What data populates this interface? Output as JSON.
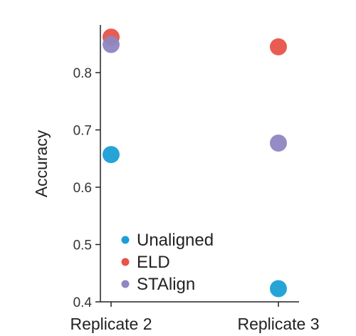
{
  "chart_data": {
    "type": "scatter",
    "title": "",
    "xlabel": "",
    "ylabel": "Accuracy",
    "categories": [
      "Replicate 2",
      "Replicate 3"
    ],
    "ylim": [
      0.4,
      0.88
    ],
    "yticks": [
      "0.4",
      "0.5",
      "0.6",
      "0.7",
      "0.8"
    ],
    "legend_position": "bottom-left",
    "grid": false,
    "series": [
      {
        "name": "Unaligned",
        "color": "#1a9fd6",
        "values": [
          0.657,
          0.423
        ]
      },
      {
        "name": "ELD",
        "color": "#e8534a",
        "values": [
          0.862,
          0.845
        ]
      },
      {
        "name": "STAlign",
        "color": "#8f86c2",
        "values": [
          0.849,
          0.677
        ]
      }
    ]
  }
}
